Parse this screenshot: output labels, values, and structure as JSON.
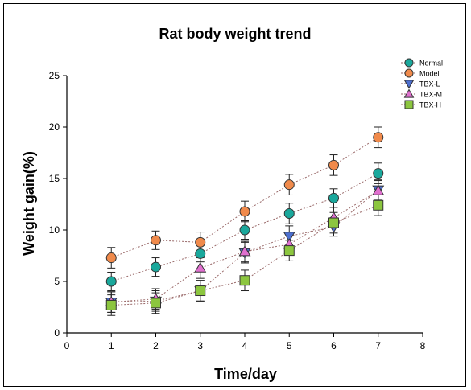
{
  "chart_data": {
    "type": "line",
    "title": "Rat body weight trend",
    "xlabel": "Time/day",
    "ylabel": "Weight gain(%)",
    "xlim": [
      0,
      8
    ],
    "ylim": [
      0,
      25
    ],
    "xticks": [
      "0",
      "1",
      "2",
      "3",
      "4",
      "5",
      "6",
      "7",
      "8"
    ],
    "yticks": [
      "0",
      "5",
      "10",
      "15",
      "20",
      "25"
    ],
    "grid": false,
    "legend_position": "top-right",
    "x": [
      1,
      2,
      3,
      4,
      5,
      6,
      7
    ],
    "series": [
      {
        "name": "Normal",
        "marker": "circle",
        "color": "#1aa89c",
        "values": [
          5.0,
          6.4,
          7.7,
          10.0,
          11.6,
          13.1,
          15.5
        ],
        "errors": [
          0.9,
          0.9,
          0.8,
          0.9,
          1.0,
          0.9,
          1.0
        ]
      },
      {
        "name": "Model",
        "marker": "circle",
        "color": "#f08a4b",
        "values": [
          7.3,
          9.0,
          8.8,
          11.8,
          14.4,
          16.3,
          19.0
        ],
        "errors": [
          1.0,
          0.9,
          1.0,
          1.0,
          1.0,
          1.0,
          1.0
        ]
      },
      {
        "name": "TBX-L",
        "marker": "triangle-down",
        "color": "#4d6fd0",
        "values": [
          3.0,
          3.1,
          4.1,
          7.8,
          9.4,
          10.3,
          13.9
        ],
        "errors": [
          1.0,
          1.0,
          1.0,
          1.0,
          1.0,
          0.9,
          1.0
        ]
      },
      {
        "name": "TBX-M",
        "marker": "triangle-up",
        "color": "#e070cf",
        "values": [
          3.0,
          3.3,
          6.3,
          7.9,
          8.6,
          11.2,
          13.8
        ],
        "errors": [
          1.0,
          1.0,
          1.0,
          1.0,
          1.0,
          1.0,
          1.0
        ]
      },
      {
        "name": "TBX-H",
        "marker": "square",
        "color": "#8cc63f",
        "values": [
          2.7,
          2.9,
          4.1,
          5.1,
          8.0,
          10.7,
          12.4
        ],
        "errors": [
          1.0,
          1.0,
          1.0,
          1.0,
          1.0,
          1.0,
          1.0
        ]
      }
    ]
  }
}
